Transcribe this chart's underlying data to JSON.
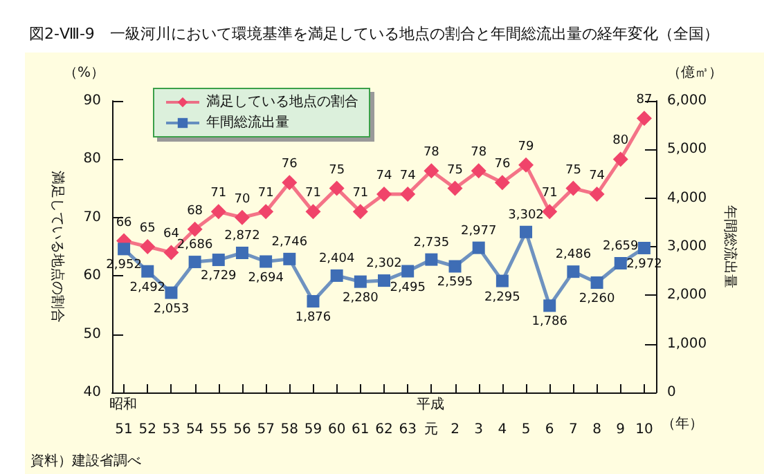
{
  "chart_data": {
    "type": "line",
    "title": "図2-Ⅷ-9　一級河川において環境基準を満足している地点の割合と年間総流出量の経年変化（全国）",
    "ylabel": "満足している地点の割合",
    "y2label": "年間総流出量",
    "categories": [
      "51",
      "52",
      "53",
      "54",
      "55",
      "56",
      "57",
      "58",
      "59",
      "60",
      "61",
      "62",
      "63",
      "元",
      "2",
      "3",
      "4",
      "5",
      "6",
      "7",
      "8",
      "9",
      "10"
    ],
    "series": [
      {
        "name": "満足している地点の割合",
        "color": "#f0446a",
        "marker": "diamond",
        "values": [
          66,
          65,
          64,
          68,
          71,
          70,
          71,
          76,
          71,
          75,
          71,
          74,
          74,
          78,
          75,
          78,
          76,
          79,
          71,
          75,
          74,
          80,
          87
        ],
        "value_labels": [
          "66",
          "65",
          "64",
          "68",
          "71",
          "70",
          "71",
          "76",
          "71",
          "75",
          "71",
          "74",
          "74",
          "78",
          "75",
          "78",
          "76",
          "79",
          "71",
          "75",
          "74",
          "80",
          "87"
        ]
      },
      {
        "name": "年間総流出量",
        "color": "#3e6db5",
        "marker": "square",
        "axis": "y2",
        "values": [
          2952,
          2492,
          2053,
          2686,
          2729,
          2872,
          2694,
          2746,
          1876,
          2404,
          2280,
          2302,
          2495,
          2735,
          2595,
          2977,
          2295,
          3302,
          1786,
          2486,
          2260,
          2659,
          2972
        ],
        "value_labels": [
          "2,952",
          "2,492",
          "2,053",
          "2,686",
          "2,729",
          "2,872",
          "2,694",
          "2,746",
          "1,876",
          "2,404",
          "2,280",
          "2,302",
          "2,495",
          "2,735",
          "2,595",
          "2,977",
          "2,295",
          "3,302",
          "1,786",
          "2,486",
          "2,260",
          "2,659",
          "2,972"
        ]
      }
    ],
    "ylim": [
      40,
      90
    ],
    "yticks": [
      40,
      50,
      60,
      70,
      80,
      90
    ],
    "y2lim": [
      0,
      6000
    ],
    "y2ticks": [
      0,
      {
        "value": 1000,
        "label": "1,000"
      },
      {
        "value": 2000,
        "label": "2,000"
      },
      {
        "value": 3000,
        "label": "3,000"
      },
      {
        "value": 4000,
        "label": "4,000"
      },
      {
        "value": 5000,
        "label": "5,000"
      },
      {
        "value": 6000,
        "label": "6,000"
      }
    ],
    "grid": false,
    "legend": "top left",
    "annotations": [
      "（%）",
      "（億㎥）",
      "昭和",
      "平成",
      "（年）",
      "資料）建設省調べ"
    ]
  }
}
